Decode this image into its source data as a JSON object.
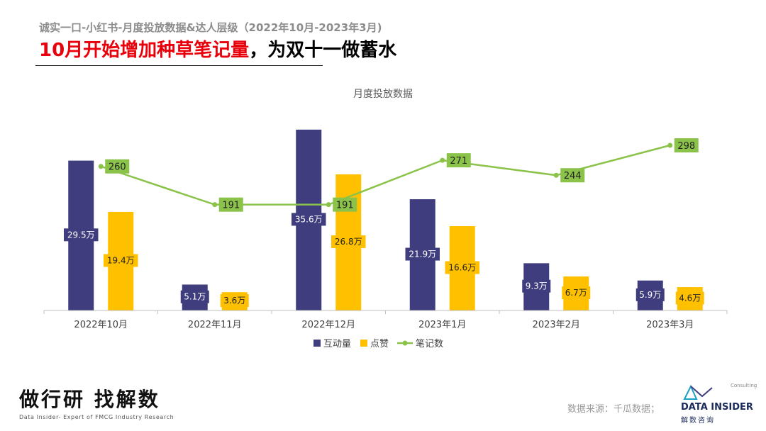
{
  "header": {
    "subtitle": "诚实一口-小红书-月度投放数据&达人层级（2022年10月-2023年3月)",
    "title_highlight": "10月开始增加种草笔记量",
    "title_rest": "，为双十一做蓄水"
  },
  "chart_data": {
    "type": "bar",
    "title": "月度投放数据",
    "categories": [
      "2022年10月",
      "2022年11月",
      "2022年12月",
      "2023年1月",
      "2023年2月",
      "2023年3月"
    ],
    "series": [
      {
        "name": "互动量",
        "kind": "bar",
        "color": "#3f3d7e",
        "values": [
          29.5,
          5.1,
          35.6,
          21.9,
          9.3,
          5.9
        ],
        "labels": [
          "29.5万",
          "5.1万",
          "35.6万",
          "21.9万",
          "9.3万",
          "5.9万"
        ]
      },
      {
        "name": "点赞",
        "kind": "bar",
        "color": "#ffc000",
        "values": [
          19.4,
          3.6,
          26.8,
          16.6,
          6.7,
          4.6
        ],
        "labels": [
          "19.4万",
          "3.6万",
          "26.8万",
          "16.6万",
          "6.7万",
          "4.6万"
        ]
      },
      {
        "name": "笔记数",
        "kind": "line",
        "color": "#8bc34a",
        "values": [
          260,
          191,
          191,
          271,
          244,
          298
        ],
        "labels": [
          "260",
          "191",
          "191",
          "271",
          "244",
          "298"
        ]
      }
    ],
    "bar_ylim": [
      0,
      36
    ],
    "line_ylim": [
      0,
      330
    ],
    "legend": "bottom",
    "grid": false
  },
  "footer": {
    "slogan": "做行研 找解数",
    "slogan_sub": "Data Insider- Expert of FMCG Industry Research",
    "source": "数据来源：千瓜数据；",
    "brand_consulting": "Consulting",
    "brand_name": "DATA INSIDER",
    "brand_cn": "解数咨询"
  }
}
